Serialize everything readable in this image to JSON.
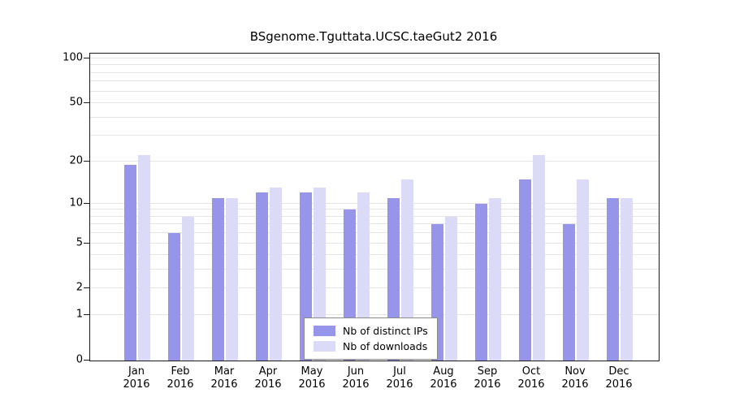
{
  "chart_data": {
    "type": "bar",
    "title": "BSgenome.Tguttata.UCSC.taeGut2 2016",
    "categories": [
      "Jan",
      "Feb",
      "Mar",
      "Apr",
      "May",
      "Jun",
      "Jul",
      "Aug",
      "Sep",
      "Oct",
      "Nov",
      "Dec"
    ],
    "category_year": "2016",
    "series": [
      {
        "name": "Nb of distinct IPs",
        "color": "#9795e9",
        "values": [
          19,
          6,
          11,
          12,
          12,
          9,
          11,
          7,
          10,
          15,
          7,
          11
        ]
      },
      {
        "name": "Nb of downloads",
        "color": "#dcdbf7",
        "values": [
          22,
          8,
          11,
          13,
          13,
          12,
          15,
          8,
          11,
          22,
          15,
          11
        ]
      }
    ],
    "y_ticks": [
      0,
      1,
      2,
      5,
      10,
      20,
      50,
      100
    ],
    "y_gridline_values": [
      1,
      2,
      3,
      4,
      5,
      6,
      7,
      8,
      9,
      10,
      20,
      30,
      40,
      50,
      60,
      70,
      80,
      90,
      100
    ],
    "scale": "log1p",
    "ylim": [
      0,
      108
    ],
    "grid": true,
    "legend_position": "bottom-center"
  }
}
